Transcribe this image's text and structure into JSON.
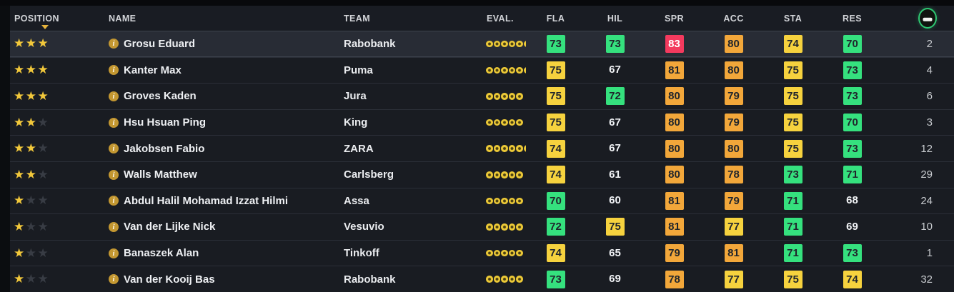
{
  "header": {
    "columns": [
      {
        "id": "position",
        "label": "POSITION",
        "sorted": "desc"
      },
      {
        "id": "name",
        "label": "NAME"
      },
      {
        "id": "team",
        "label": "TEAM"
      },
      {
        "id": "eval",
        "label": "EVAL."
      },
      {
        "id": "fla",
        "label": "FLA"
      },
      {
        "id": "hil",
        "label": "HIL"
      },
      {
        "id": "spr",
        "label": "SPR"
      },
      {
        "id": "acc",
        "label": "ACC"
      },
      {
        "id": "sta",
        "label": "STA"
      },
      {
        "id": "res",
        "label": "RES"
      },
      {
        "id": "number",
        "label": "",
        "icon": "race-bib-icon"
      }
    ]
  },
  "icons": {
    "star_glyph": "★",
    "info_glyph": "i"
  },
  "tier_colors": {
    "green": "#35e17e",
    "yellow": "#f6d23e",
    "orange": "#f2a73a",
    "red": "#f43a5e",
    "none": "transparent"
  },
  "rows": [
    {
      "selected": true,
      "stars": 3,
      "stars_max": 3,
      "name": "Grosu Eduard",
      "team": "Rabobank",
      "eval_dots": 5,
      "eval_extra": "half",
      "stats": [
        {
          "v": 73,
          "tier": "green"
        },
        {
          "v": 73,
          "tier": "green"
        },
        {
          "v": 83,
          "tier": "red"
        },
        {
          "v": 80,
          "tier": "orange"
        },
        {
          "v": 74,
          "tier": "yellow"
        },
        {
          "v": 70,
          "tier": "green"
        }
      ],
      "number": 2
    },
    {
      "selected": false,
      "stars": 3,
      "stars_max": 3,
      "name": "Kanter Max",
      "team": "Puma",
      "eval_dots": 5,
      "eval_extra": "half",
      "stats": [
        {
          "v": 75,
          "tier": "yellow"
        },
        {
          "v": 67,
          "tier": "none"
        },
        {
          "v": 81,
          "tier": "orange"
        },
        {
          "v": 80,
          "tier": "orange"
        },
        {
          "v": 75,
          "tier": "yellow"
        },
        {
          "v": 73,
          "tier": "green"
        }
      ],
      "number": 4
    },
    {
      "selected": false,
      "stars": 3,
      "stars_max": 3,
      "name": "Groves Kaden",
      "team": "Jura",
      "eval_dots": 5,
      "eval_extra": "tiny",
      "stats": [
        {
          "v": 75,
          "tier": "yellow"
        },
        {
          "v": 72,
          "tier": "green"
        },
        {
          "v": 80,
          "tier": "orange"
        },
        {
          "v": 79,
          "tier": "orange"
        },
        {
          "v": 75,
          "tier": "yellow"
        },
        {
          "v": 73,
          "tier": "green"
        }
      ],
      "number": 6
    },
    {
      "selected": false,
      "stars": 2,
      "stars_max": 3,
      "name": "Hsu Hsuan Ping",
      "team": "King",
      "eval_dots": 5,
      "eval_extra": "tiny",
      "stats": [
        {
          "v": 75,
          "tier": "yellow"
        },
        {
          "v": 67,
          "tier": "none"
        },
        {
          "v": 80,
          "tier": "orange"
        },
        {
          "v": 79,
          "tier": "orange"
        },
        {
          "v": 75,
          "tier": "yellow"
        },
        {
          "v": 70,
          "tier": "green"
        }
      ],
      "number": 3
    },
    {
      "selected": false,
      "stars": 2,
      "stars_max": 3,
      "name": "Jakobsen Fabio",
      "team": "ZARA",
      "eval_dots": 5,
      "eval_extra": "half",
      "stats": [
        {
          "v": 74,
          "tier": "yellow"
        },
        {
          "v": 67,
          "tier": "none"
        },
        {
          "v": 80,
          "tier": "orange"
        },
        {
          "v": 80,
          "tier": "orange"
        },
        {
          "v": 75,
          "tier": "yellow"
        },
        {
          "v": 73,
          "tier": "green"
        }
      ],
      "number": 12
    },
    {
      "selected": false,
      "stars": 2,
      "stars_max": 3,
      "name": "Walls Matthew",
      "team": "Carlsberg",
      "eval_dots": 5,
      "eval_extra": "tiny",
      "stats": [
        {
          "v": 74,
          "tier": "yellow"
        },
        {
          "v": 61,
          "tier": "none"
        },
        {
          "v": 80,
          "tier": "orange"
        },
        {
          "v": 78,
          "tier": "orange"
        },
        {
          "v": 73,
          "tier": "green"
        },
        {
          "v": 71,
          "tier": "green"
        }
      ],
      "number": 29
    },
    {
      "selected": false,
      "stars": 1,
      "stars_max": 3,
      "name": "Abdul Halil Mohamad Izzat Hilmi",
      "team": "Assa",
      "eval_dots": 5,
      "eval_extra": "tiny",
      "stats": [
        {
          "v": 70,
          "tier": "green"
        },
        {
          "v": 60,
          "tier": "none"
        },
        {
          "v": 81,
          "tier": "orange"
        },
        {
          "v": 79,
          "tier": "orange"
        },
        {
          "v": 71,
          "tier": "green"
        },
        {
          "v": 68,
          "tier": "none"
        }
      ],
      "number": 24
    },
    {
      "selected": false,
      "stars": 1,
      "stars_max": 3,
      "name": "Van der Lijke Nick",
      "team": "Vesuvio",
      "eval_dots": 5,
      "eval_extra": "tiny",
      "stats": [
        {
          "v": 72,
          "tier": "green"
        },
        {
          "v": 75,
          "tier": "yellow"
        },
        {
          "v": 81,
          "tier": "orange"
        },
        {
          "v": 77,
          "tier": "yellow"
        },
        {
          "v": 71,
          "tier": "green"
        },
        {
          "v": 69,
          "tier": "none"
        }
      ],
      "number": 10
    },
    {
      "selected": false,
      "stars": 1,
      "stars_max": 3,
      "name": "Banaszek Alan",
      "team": "Tinkoff",
      "eval_dots": 5,
      "eval_extra": "tiny",
      "stats": [
        {
          "v": 74,
          "tier": "yellow"
        },
        {
          "v": 65,
          "tier": "none"
        },
        {
          "v": 79,
          "tier": "orange"
        },
        {
          "v": 81,
          "tier": "orange"
        },
        {
          "v": 71,
          "tier": "green"
        },
        {
          "v": 73,
          "tier": "green"
        }
      ],
      "number": 1
    },
    {
      "selected": false,
      "stars": 1,
      "stars_max": 3,
      "name": "Van der Kooij Bas",
      "team": "Rabobank",
      "eval_dots": 5,
      "eval_extra": "tiny",
      "stats": [
        {
          "v": 73,
          "tier": "green"
        },
        {
          "v": 69,
          "tier": "none"
        },
        {
          "v": 78,
          "tier": "orange"
        },
        {
          "v": 77,
          "tier": "yellow"
        },
        {
          "v": 75,
          "tier": "yellow"
        },
        {
          "v": 74,
          "tier": "yellow"
        }
      ],
      "number": 32
    }
  ]
}
